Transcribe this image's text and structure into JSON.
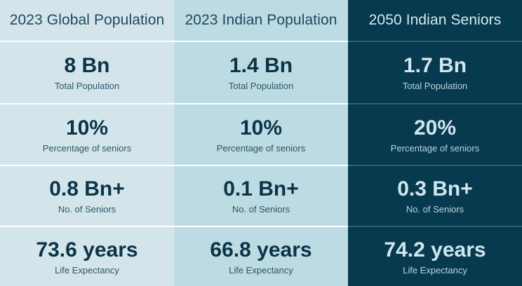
{
  "headers": [
    "2023 Global Population",
    "2023 Indian Population",
    "2050 Indian Seniors"
  ],
  "rows": [
    {
      "label": "Total Population",
      "values": [
        "8 Bn",
        "1.4 Bn",
        "1.7 Bn"
      ]
    },
    {
      "label": "Percentage of seniors",
      "values": [
        "10%",
        "10%",
        "20%"
      ]
    },
    {
      "label": "No. of Seniors",
      "values": [
        "0.8 Bn+",
        "0.1 Bn+",
        "0.3 Bn+"
      ]
    },
    {
      "label": "Life Expectancy",
      "values": [
        "73.6 years",
        "66.8 years",
        "74.2 years"
      ]
    }
  ],
  "colors": {
    "column1_bg": "#d3e5eb",
    "column2_bg": "#bcdbe3",
    "column3_bg": "#083a4f",
    "dark_text": "#0b3448",
    "light_text": "#cfe6ee"
  }
}
